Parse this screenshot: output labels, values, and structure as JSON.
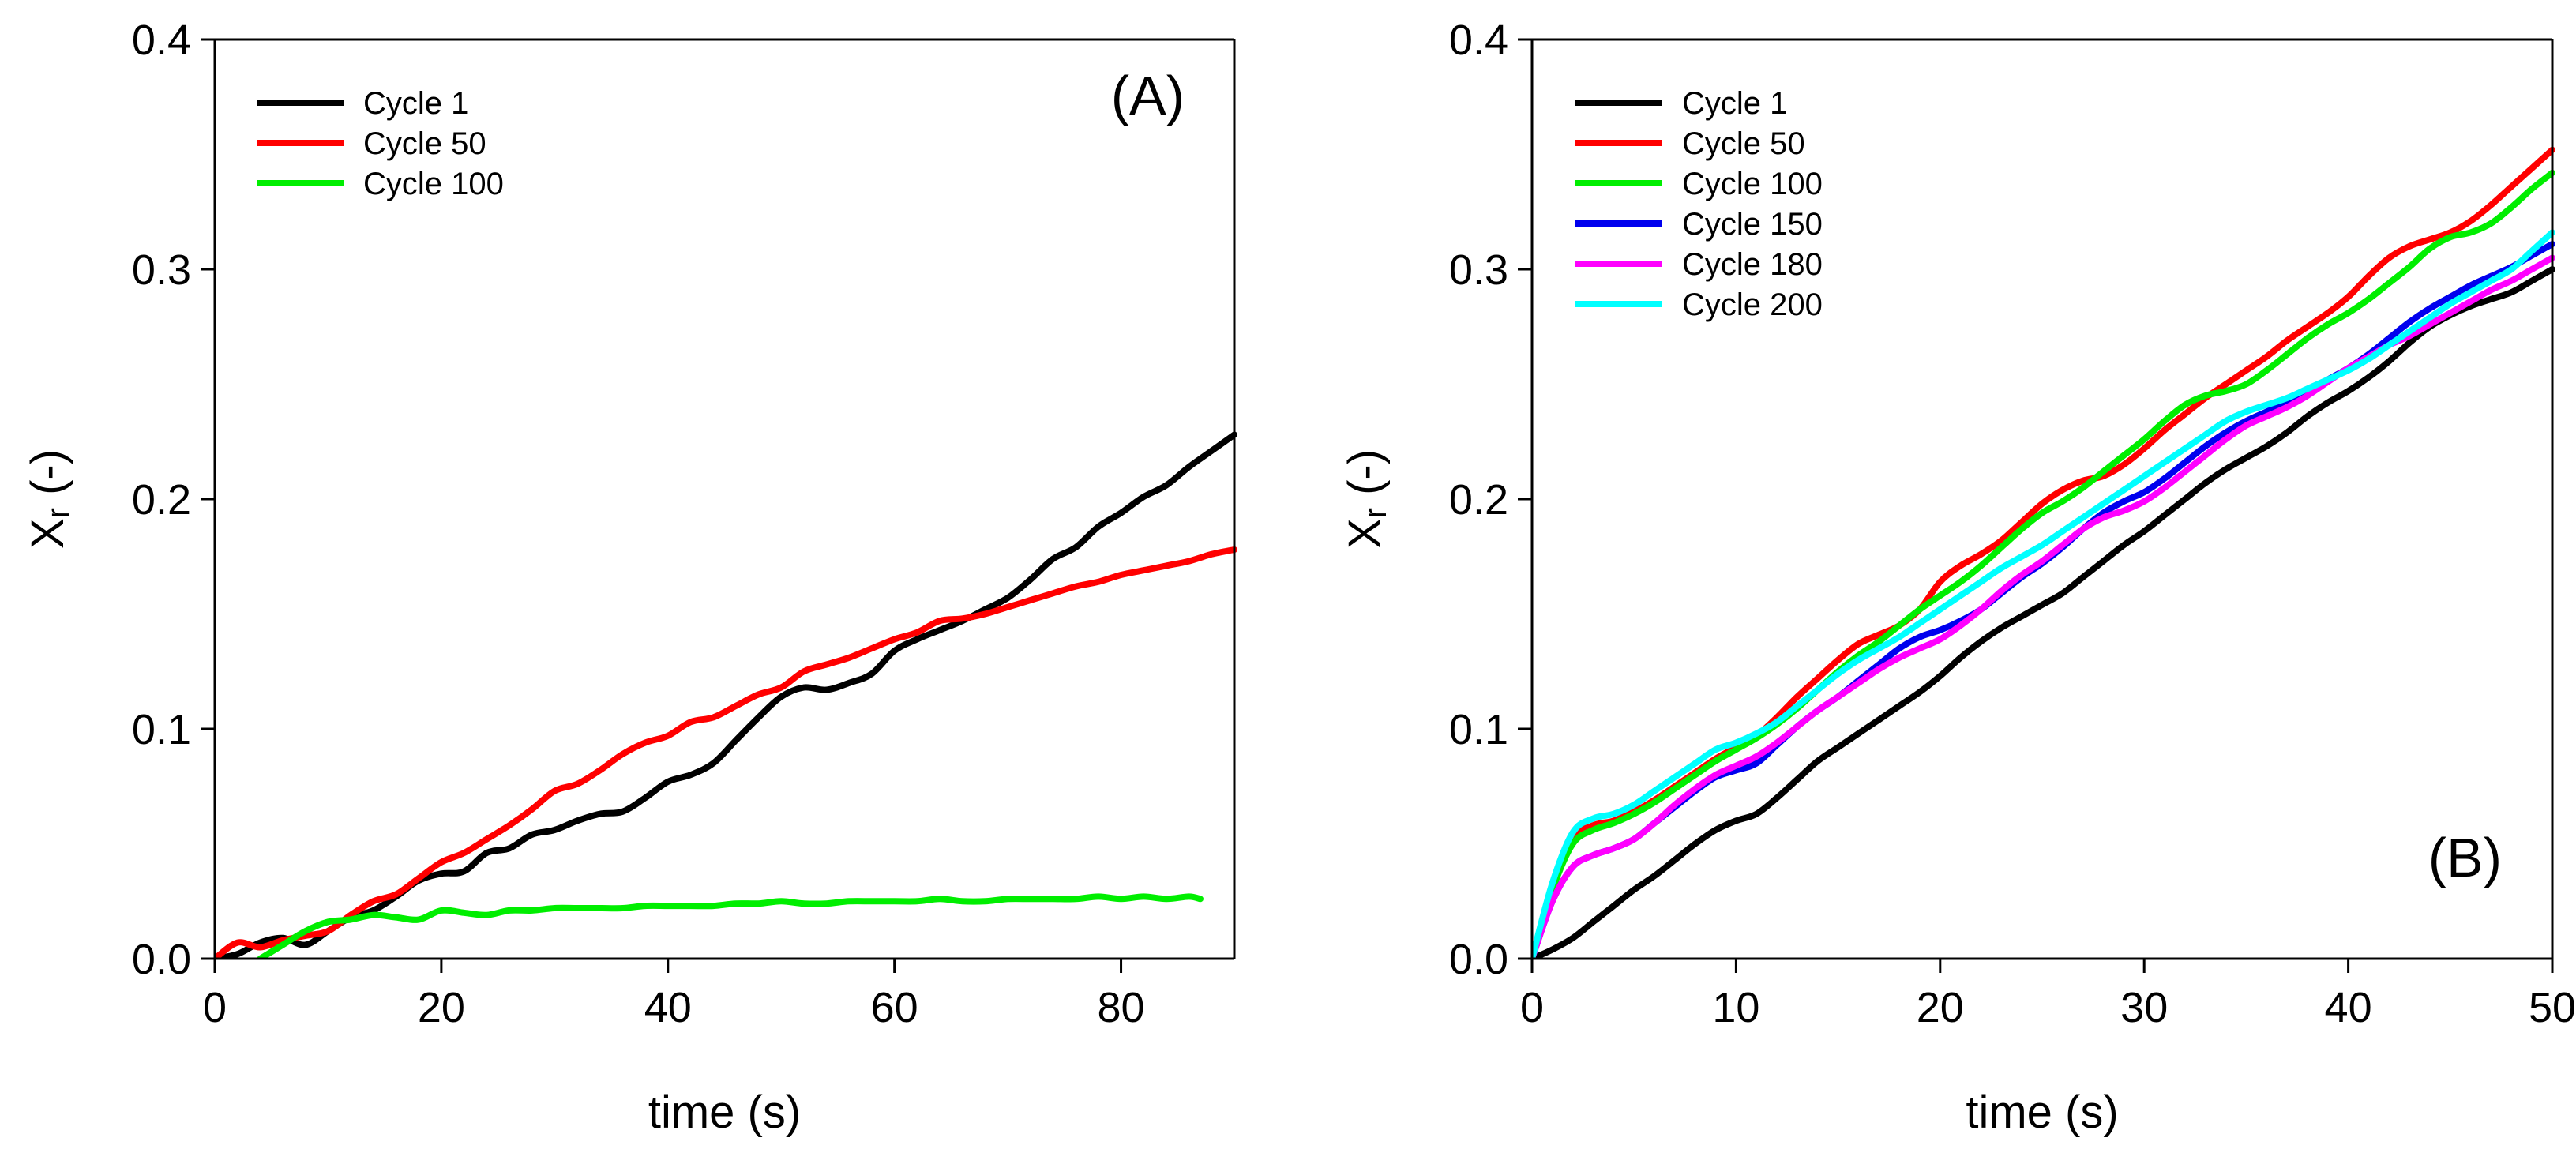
{
  "chart_data": [
    {
      "type": "line",
      "panel_label": "(A)",
      "xlabel": "time (s)",
      "ylabel_main": "X",
      "ylabel_sub": "r",
      "ylabel_suffix": " (-)",
      "xlim": [
        0,
        90
      ],
      "ylim": [
        0,
        0.4
      ],
      "xticks": [
        0,
        20,
        40,
        60,
        80
      ],
      "xtick_labels": [
        "0",
        "20",
        "40",
        "60",
        "80"
      ],
      "yticks": [
        0,
        0.1,
        0.2,
        0.3,
        0.4
      ],
      "ytick_labels": [
        "0.0",
        "0.1",
        "0.2",
        "0.3",
        "0.4"
      ],
      "grid": false,
      "legend": "top-left",
      "series": [
        {
          "name": "Cycle 1",
          "color": "#000000",
          "x": [
            0,
            2,
            4,
            6,
            8,
            10,
            12,
            14,
            16,
            18,
            20,
            22,
            24,
            26,
            28,
            30,
            32,
            34,
            36,
            38,
            40,
            42,
            44,
            46,
            48,
            50,
            52,
            54,
            56,
            58,
            60,
            62,
            64,
            66,
            68,
            70,
            72,
            74,
            76,
            78,
            80,
            82,
            84,
            86,
            88,
            90
          ],
          "y": [
            0,
            0.002,
            0.007,
            0.009,
            0.006,
            0.012,
            0.018,
            0.021,
            0.027,
            0.034,
            0.037,
            0.038,
            0.046,
            0.048,
            0.054,
            0.056,
            0.06,
            0.063,
            0.064,
            0.07,
            0.077,
            0.08,
            0.085,
            0.095,
            0.105,
            0.114,
            0.118,
            0.117,
            0.12,
            0.124,
            0.134,
            0.139,
            0.143,
            0.147,
            0.152,
            0.157,
            0.165,
            0.174,
            0.179,
            0.188,
            0.194,
            0.201,
            0.206,
            0.214,
            0.221,
            0.228
          ]
        },
        {
          "name": "Cycle 50",
          "color": "#ff0000",
          "x": [
            0,
            2,
            4,
            6,
            8,
            10,
            12,
            14,
            16,
            18,
            20,
            22,
            24,
            26,
            28,
            30,
            32,
            34,
            36,
            38,
            40,
            42,
            44,
            46,
            48,
            50,
            52,
            54,
            56,
            58,
            60,
            62,
            64,
            66,
            68,
            70,
            72,
            74,
            76,
            78,
            80,
            82,
            84,
            86,
            88,
            90
          ],
          "y": [
            0,
            0.007,
            0.005,
            0.008,
            0.01,
            0.012,
            0.019,
            0.025,
            0.028,
            0.035,
            0.042,
            0.046,
            0.052,
            0.058,
            0.065,
            0.073,
            0.076,
            0.082,
            0.089,
            0.094,
            0.097,
            0.103,
            0.105,
            0.11,
            0.115,
            0.118,
            0.125,
            0.128,
            0.131,
            0.135,
            0.139,
            0.142,
            0.147,
            0.148,
            0.15,
            0.153,
            0.156,
            0.159,
            0.162,
            0.164,
            0.167,
            0.169,
            0.171,
            0.173,
            0.176,
            0.178
          ]
        },
        {
          "name": "Cycle 100",
          "color": "#00ee00",
          "x": [
            4,
            6,
            8,
            10,
            12,
            14,
            16,
            18,
            20,
            22,
            24,
            26,
            28,
            30,
            32,
            34,
            36,
            38,
            40,
            42,
            44,
            46,
            48,
            50,
            52,
            54,
            56,
            58,
            60,
            62,
            64,
            66,
            68,
            70,
            72,
            74,
            76,
            78,
            80,
            82,
            84,
            86,
            87
          ],
          "y": [
            0,
            0.006,
            0.012,
            0.016,
            0.017,
            0.019,
            0.018,
            0.017,
            0.021,
            0.02,
            0.019,
            0.021,
            0.021,
            0.022,
            0.022,
            0.022,
            0.022,
            0.023,
            0.023,
            0.023,
            0.023,
            0.024,
            0.024,
            0.025,
            0.024,
            0.024,
            0.025,
            0.025,
            0.025,
            0.025,
            0.026,
            0.025,
            0.025,
            0.026,
            0.026,
            0.026,
            0.026,
            0.027,
            0.026,
            0.027,
            0.026,
            0.027,
            0.026
          ]
        }
      ]
    },
    {
      "type": "line",
      "panel_label": "(B)",
      "xlabel": "time (s)",
      "ylabel_main": "X",
      "ylabel_sub": "r",
      "ylabel_suffix": " (-)",
      "xlim": [
        0,
        50
      ],
      "ylim": [
        0,
        0.4
      ],
      "xticks": [
        0,
        10,
        20,
        30,
        40,
        50
      ],
      "xtick_labels": [
        "0",
        "10",
        "20",
        "30",
        "40",
        "50"
      ],
      "yticks": [
        0,
        0.1,
        0.2,
        0.3,
        0.4
      ],
      "ytick_labels": [
        "0.0",
        "0.1",
        "0.2",
        "0.3",
        "0.4"
      ],
      "grid": false,
      "legend": "top-left",
      "series": [
        {
          "name": "Cycle 1",
          "color": "#000000",
          "x": [
            0,
            1,
            2,
            3,
            4,
            5,
            6,
            7,
            8,
            9,
            10,
            11,
            12,
            13,
            14,
            15,
            16,
            17,
            18,
            19,
            20,
            21,
            22,
            23,
            24,
            25,
            26,
            27,
            28,
            29,
            30,
            31,
            32,
            33,
            34,
            35,
            36,
            37,
            38,
            39,
            40,
            41,
            42,
            43,
            44,
            45,
            46,
            47,
            48,
            49,
            50
          ],
          "y": [
            0,
            0.004,
            0.009,
            0.016,
            0.023,
            0.03,
            0.036,
            0.043,
            0.05,
            0.056,
            0.06,
            0.063,
            0.07,
            0.078,
            0.086,
            0.092,
            0.098,
            0.104,
            0.11,
            0.116,
            0.123,
            0.131,
            0.138,
            0.144,
            0.149,
            0.154,
            0.159,
            0.166,
            0.173,
            0.18,
            0.186,
            0.193,
            0.2,
            0.207,
            0.213,
            0.218,
            0.223,
            0.229,
            0.236,
            0.242,
            0.247,
            0.253,
            0.26,
            0.268,
            0.275,
            0.28,
            0.284,
            0.287,
            0.29,
            0.295,
            0.3
          ]
        },
        {
          "name": "Cycle 50",
          "color": "#ff0000",
          "x": [
            0,
            1,
            2,
            3,
            4,
            5,
            6,
            7,
            8,
            9,
            10,
            11,
            12,
            13,
            14,
            15,
            16,
            17,
            18,
            19,
            20,
            21,
            22,
            23,
            24,
            25,
            26,
            27,
            28,
            29,
            30,
            31,
            32,
            33,
            34,
            35,
            36,
            37,
            38,
            39,
            40,
            41,
            42,
            43,
            44,
            45,
            46,
            47,
            48,
            49,
            50
          ],
          "y": [
            0,
            0.03,
            0.052,
            0.058,
            0.06,
            0.064,
            0.069,
            0.075,
            0.081,
            0.087,
            0.092,
            0.097,
            0.105,
            0.114,
            0.122,
            0.13,
            0.137,
            0.141,
            0.145,
            0.152,
            0.164,
            0.171,
            0.176,
            0.182,
            0.19,
            0.198,
            0.204,
            0.208,
            0.21,
            0.215,
            0.222,
            0.23,
            0.237,
            0.244,
            0.25,
            0.256,
            0.262,
            0.269,
            0.275,
            0.281,
            0.288,
            0.297,
            0.305,
            0.31,
            0.313,
            0.316,
            0.321,
            0.328,
            0.336,
            0.344,
            0.352
          ]
        },
        {
          "name": "Cycle 100",
          "color": "#00ee00",
          "x": [
            0,
            1,
            2,
            3,
            4,
            5,
            6,
            7,
            8,
            9,
            10,
            11,
            12,
            13,
            14,
            15,
            16,
            17,
            18,
            19,
            20,
            21,
            22,
            23,
            24,
            25,
            26,
            27,
            28,
            29,
            30,
            31,
            32,
            33,
            34,
            35,
            36,
            37,
            38,
            39,
            40,
            41,
            42,
            43,
            44,
            45,
            46,
            47,
            48,
            49,
            50
          ],
          "y": [
            0,
            0.03,
            0.05,
            0.056,
            0.059,
            0.063,
            0.068,
            0.074,
            0.08,
            0.086,
            0.091,
            0.096,
            0.102,
            0.109,
            0.117,
            0.125,
            0.132,
            0.138,
            0.145,
            0.152,
            0.158,
            0.164,
            0.171,
            0.179,
            0.187,
            0.194,
            0.199,
            0.205,
            0.212,
            0.219,
            0.226,
            0.234,
            0.241,
            0.245,
            0.247,
            0.25,
            0.256,
            0.263,
            0.27,
            0.276,
            0.281,
            0.287,
            0.294,
            0.301,
            0.309,
            0.314,
            0.316,
            0.32,
            0.327,
            0.335,
            0.342
          ]
        },
        {
          "name": "Cycle 150",
          "color": "#0000ee",
          "x": [
            0,
            1,
            2,
            3,
            4,
            5,
            6,
            7,
            8,
            9,
            10,
            11,
            12,
            13,
            14,
            15,
            16,
            17,
            18,
            19,
            20,
            21,
            22,
            23,
            24,
            25,
            26,
            27,
            28,
            29,
            30,
            31,
            32,
            33,
            34,
            35,
            36,
            37,
            38,
            39,
            40,
            41,
            42,
            43,
            44,
            45,
            46,
            47,
            48,
            49,
            50
          ],
          "y": [
            0,
            0.025,
            0.04,
            0.045,
            0.048,
            0.052,
            0.059,
            0.066,
            0.073,
            0.079,
            0.082,
            0.085,
            0.093,
            0.101,
            0.108,
            0.114,
            0.121,
            0.128,
            0.135,
            0.14,
            0.143,
            0.147,
            0.152,
            0.159,
            0.166,
            0.172,
            0.179,
            0.187,
            0.194,
            0.199,
            0.203,
            0.209,
            0.216,
            0.223,
            0.229,
            0.234,
            0.238,
            0.242,
            0.247,
            0.252,
            0.257,
            0.263,
            0.27,
            0.277,
            0.283,
            0.288,
            0.293,
            0.297,
            0.301,
            0.306,
            0.311
          ]
        },
        {
          "name": "Cycle 180",
          "color": "#ff00ff",
          "x": [
            0,
            1,
            2,
            3,
            4,
            5,
            6,
            7,
            8,
            9,
            10,
            11,
            12,
            13,
            14,
            15,
            16,
            17,
            18,
            19,
            20,
            21,
            22,
            23,
            24,
            25,
            26,
            27,
            28,
            29,
            30,
            31,
            32,
            33,
            34,
            35,
            36,
            37,
            38,
            39,
            40,
            41,
            42,
            43,
            44,
            45,
            46,
            47,
            48,
            49,
            50
          ],
          "y": [
            0,
            0.025,
            0.04,
            0.045,
            0.048,
            0.052,
            0.059,
            0.067,
            0.074,
            0.08,
            0.084,
            0.088,
            0.094,
            0.101,
            0.108,
            0.114,
            0.12,
            0.126,
            0.131,
            0.135,
            0.139,
            0.145,
            0.152,
            0.16,
            0.167,
            0.173,
            0.18,
            0.187,
            0.192,
            0.195,
            0.199,
            0.205,
            0.212,
            0.219,
            0.226,
            0.232,
            0.236,
            0.24,
            0.245,
            0.251,
            0.257,
            0.262,
            0.267,
            0.271,
            0.276,
            0.281,
            0.286,
            0.291,
            0.295,
            0.3,
            0.305
          ]
        },
        {
          "name": "Cycle 200",
          "color": "#00ffff",
          "x": [
            0,
            1,
            2,
            3,
            4,
            5,
            6,
            7,
            8,
            9,
            10,
            11,
            12,
            13,
            14,
            15,
            16,
            17,
            18,
            19,
            20,
            21,
            22,
            23,
            24,
            25,
            26,
            27,
            28,
            29,
            30,
            31,
            32,
            33,
            34,
            35,
            36,
            37,
            38,
            39,
            40,
            41,
            42,
            43,
            44,
            45,
            46,
            47,
            48,
            49,
            50
          ],
          "y": [
            0,
            0.033,
            0.055,
            0.061,
            0.063,
            0.067,
            0.073,
            0.079,
            0.085,
            0.091,
            0.094,
            0.098,
            0.103,
            0.11,
            0.117,
            0.124,
            0.13,
            0.135,
            0.14,
            0.146,
            0.152,
            0.158,
            0.164,
            0.17,
            0.175,
            0.18,
            0.186,
            0.192,
            0.198,
            0.204,
            0.21,
            0.216,
            0.222,
            0.228,
            0.234,
            0.238,
            0.241,
            0.244,
            0.248,
            0.252,
            0.256,
            0.261,
            0.267,
            0.273,
            0.279,
            0.285,
            0.29,
            0.295,
            0.3,
            0.308,
            0.316
          ]
        }
      ]
    }
  ]
}
